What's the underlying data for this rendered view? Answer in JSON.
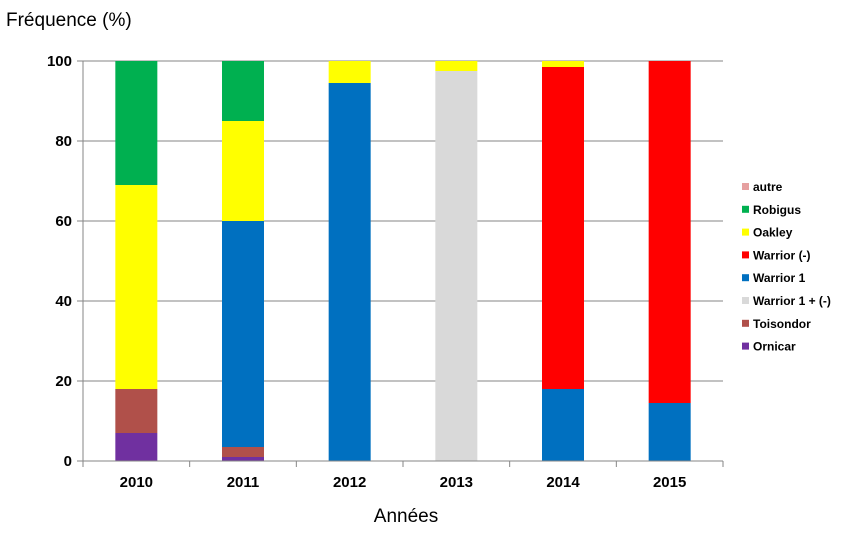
{
  "chart_data": {
    "type": "bar",
    "stacked": true,
    "ylabel": "Fréquence (%)",
    "xlabel": "Années",
    "ylim": [
      0,
      100
    ],
    "yticks": [
      0,
      20,
      40,
      60,
      80,
      100
    ],
    "grid": true,
    "legend_position": "right",
    "categories": [
      "2010",
      "2011",
      "2012",
      "2013",
      "2014",
      "2015"
    ],
    "series": [
      {
        "name": "Ornicar",
        "color": "#7030a0",
        "values": [
          7,
          1,
          0,
          0,
          0,
          0
        ]
      },
      {
        "name": "Toisondor",
        "color": "#b0504a",
        "values": [
          11,
          2.5,
          0,
          0,
          0,
          0
        ]
      },
      {
        "name": "Warrior 1 + (-)",
        "color": "#d9d9d9",
        "values": [
          0,
          0,
          0,
          97.5,
          0,
          0
        ]
      },
      {
        "name": "Warrior 1",
        "color": "#0070c0",
        "values": [
          0,
          56.5,
          94.5,
          0,
          18,
          14.5
        ]
      },
      {
        "name": "Warrior (-)",
        "color": "#ff0000",
        "values": [
          0,
          0,
          0,
          0,
          80.5,
          85.5
        ]
      },
      {
        "name": "Oakley",
        "color": "#ffff00",
        "values": [
          51,
          25,
          5.5,
          2.5,
          1.5,
          0
        ]
      },
      {
        "name": "Robigus",
        "color": "#00b050",
        "values": [
          31,
          15,
          0,
          0,
          0,
          0
        ]
      },
      {
        "name": "autre",
        "color": "#e6a0a0",
        "values": [
          0,
          0,
          0,
          0,
          0,
          0
        ]
      }
    ],
    "legend_order": [
      "autre",
      "Robigus",
      "Oakley",
      "Warrior (-)",
      "Warrior 1",
      "Warrior 1 + (-)",
      "Toisondor",
      "Ornicar"
    ]
  }
}
